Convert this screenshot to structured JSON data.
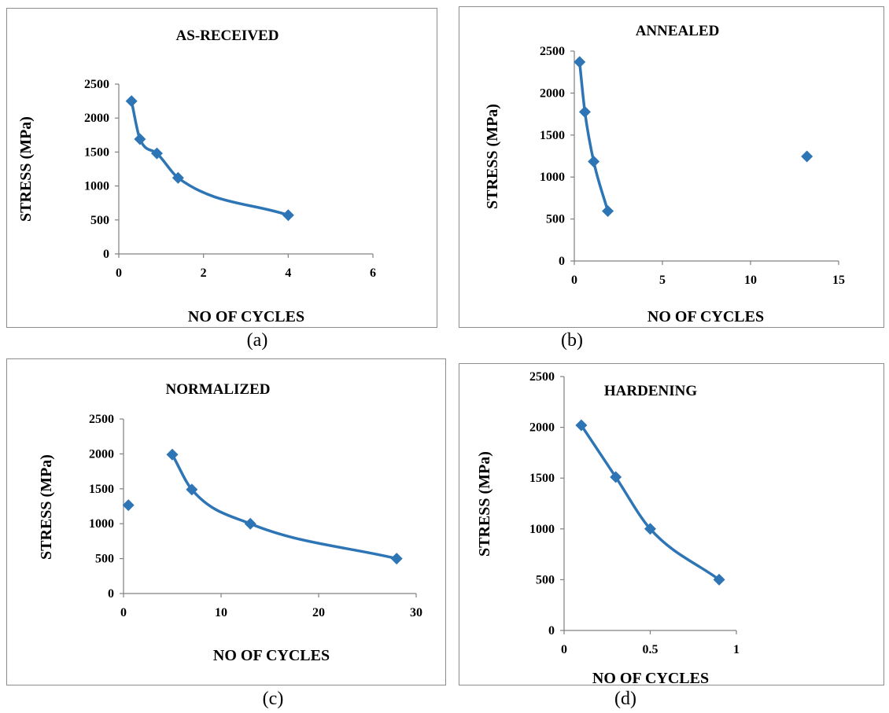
{
  "colors": {
    "series": "#2E75B6",
    "axis": "#808080",
    "frame": "#8c8c8c"
  },
  "captions": [
    "(a)",
    "(b)",
    "(c)",
    "(d)"
  ],
  "chart_data": [
    {
      "type": "scatter",
      "title": "AS-RECEIVED",
      "xlabel": "NO OF CYCLES",
      "ylabel": "STRESS (MPa)",
      "xlim": [
        0,
        6
      ],
      "ylim": [
        0,
        2500
      ],
      "xticks": [
        0,
        2,
        4,
        6
      ],
      "yticks": [
        0,
        500,
        1000,
        1500,
        2000,
        2500
      ],
      "grid": false,
      "series": [
        {
          "x": [
            0.3,
            0.5,
            0.9,
            1.4,
            4.0
          ],
          "y": [
            2250,
            1690,
            1480,
            1120,
            570
          ],
          "smooth_line": true
        }
      ]
    },
    {
      "type": "scatter",
      "title": "ANNEALED",
      "xlabel": "NO OF CYCLES",
      "ylabel": "STRESS (MPa)",
      "xlim": [
        0,
        15
      ],
      "ylim": [
        0,
        2500
      ],
      "xticks": [
        0,
        5,
        10,
        15
      ],
      "yticks": [
        0,
        500,
        1000,
        1500,
        2000,
        2500
      ],
      "grid": false,
      "series": [
        {
          "x": [
            0.3,
            0.6,
            1.1,
            1.9
          ],
          "y": [
            2370,
            1775,
            1185,
            595
          ],
          "smooth_line": true
        },
        {
          "x": [
            13.2
          ],
          "y": [
            1245
          ],
          "smooth_line": false
        }
      ]
    },
    {
      "type": "scatter",
      "title": "NORMALIZED",
      "xlabel": "NO OF CYCLES",
      "ylabel": "STRESS (MPa)",
      "xlim": [
        0,
        30
      ],
      "ylim": [
        0,
        2500
      ],
      "xticks": [
        0,
        10,
        20,
        30
      ],
      "yticks": [
        0,
        500,
        1000,
        1500,
        2000,
        2500
      ],
      "grid": false,
      "series": [
        {
          "x": [
            5,
            7,
            13,
            28
          ],
          "y": [
            1990,
            1490,
            1000,
            500
          ],
          "smooth_line": true
        },
        {
          "x": [
            0.5
          ],
          "y": [
            1265
          ],
          "smooth_line": false
        }
      ]
    },
    {
      "type": "scatter",
      "title": "HARDENING",
      "xlabel": "NO OF CYCLES",
      "ylabel": "STRESS (MPa)",
      "xlim": [
        0,
        1
      ],
      "ylim": [
        0,
        2500
      ],
      "xticks": [
        0,
        0.5,
        1
      ],
      "yticks": [
        0,
        500,
        1000,
        1500,
        2000,
        2500
      ],
      "grid": false,
      "series": [
        {
          "x": [
            0.1,
            0.3,
            0.5,
            0.9
          ],
          "y": [
            2020,
            1510,
            1000,
            500
          ],
          "smooth_line": true
        }
      ]
    }
  ]
}
